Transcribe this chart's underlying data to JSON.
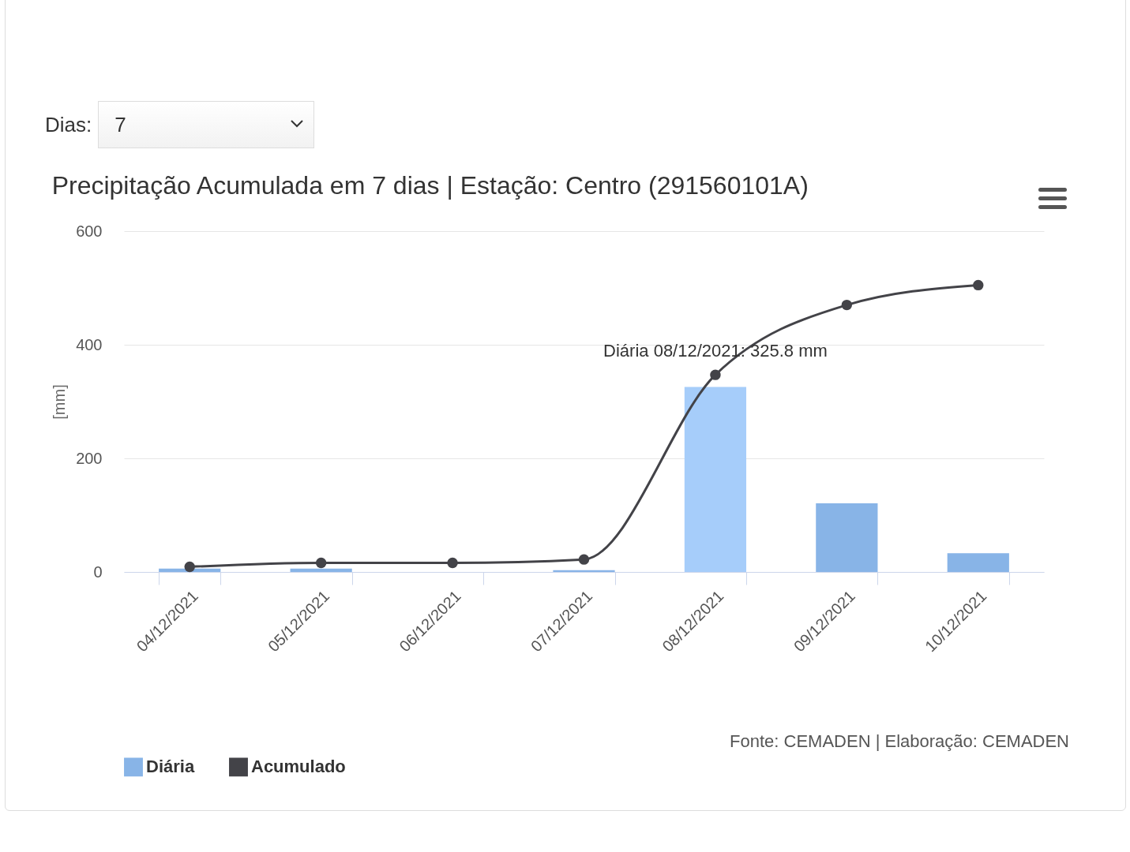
{
  "chart_data": {
    "type": "bar",
    "title": "Precipitação Acumulada em 7 dias | Estação: Centro (291560101A)",
    "ylabel": "[mm]",
    "categories": [
      "04/12/2021",
      "05/12/2021",
      "06/12/2021",
      "07/12/2021",
      "08/12/2021",
      "09/12/2021",
      "10/12/2021"
    ],
    "series": [
      {
        "name": "Diária",
        "color": "#88b4e7",
        "colors": [
          "#88b4e7",
          "#88b4e7",
          "#88b4e7",
          "#88b4e7",
          "#a6cdfa",
          "#88b4e7",
          "#88b4e7"
        ],
        "values": [
          6,
          6,
          0,
          3,
          325.8,
          121,
          33
        ]
      },
      {
        "name": "Acumulado",
        "type": "line",
        "color": "#434348",
        "values": [
          9,
          16,
          16,
          22,
          347,
          470,
          505
        ]
      }
    ],
    "ylim": [
      0,
      600
    ],
    "yticks": [
      0,
      200,
      400,
      600
    ],
    "grid": "y",
    "legend": "bottom",
    "marker": "circle",
    "annotations": [
      "Dias:",
      "7",
      {
        "text": "Diária 08/12/2021: 325.8 mm",
        "x": "08/12/2021",
        "y": 325.8
      },
      "Fonte: CEMADEN | Elaboração: CEMADEN"
    ]
  }
}
